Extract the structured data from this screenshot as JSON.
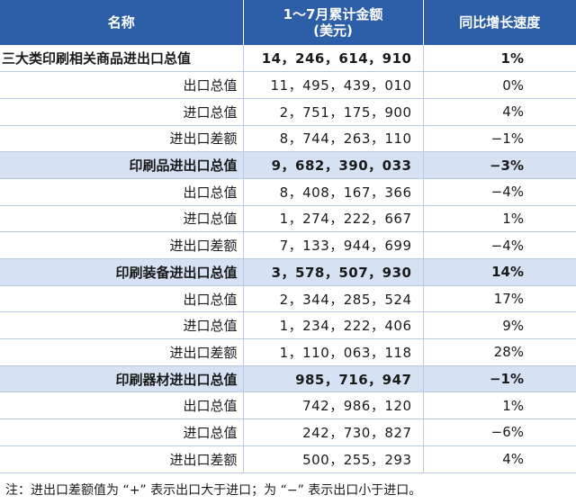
{
  "header": {
    "col_name": "名称",
    "col_amount_line1": "1～7月累计金额",
    "col_amount_line2": "(美元)",
    "col_growth": "同比增长速度"
  },
  "rows": [
    {
      "name": "三大类印刷相关商品进出口总值",
      "value": "14，246，614，910",
      "growth": "1%",
      "kind": "total"
    },
    {
      "name": "出口总值",
      "value": "11，495，439，010",
      "growth": "0%",
      "kind": "item"
    },
    {
      "name": "进口总值",
      "value": "2，751，175，900",
      "growth": "4%",
      "kind": "item"
    },
    {
      "name": "进出口差额",
      "value": "8，744，263，110",
      "growth": "−1%",
      "kind": "item"
    },
    {
      "name": "印刷品进出口总值",
      "value": "9，682，390，033",
      "growth": "−3%",
      "kind": "group"
    },
    {
      "name": "出口总值",
      "value": "8，408，167，366",
      "growth": "−4%",
      "kind": "item"
    },
    {
      "name": "进口总值",
      "value": "1，274，222，667",
      "growth": "1%",
      "kind": "item"
    },
    {
      "name": "进出口差额",
      "value": "7，133，944，699",
      "growth": "−4%",
      "kind": "item"
    },
    {
      "name": "印刷装备进出口总值",
      "value": "3，578，507，930",
      "growth": "14%",
      "kind": "group"
    },
    {
      "name": "出口总值",
      "value": "2，344，285，524",
      "growth": "17%",
      "kind": "item"
    },
    {
      "name": "进口总值",
      "value": "1，234，222，406",
      "growth": "9%",
      "kind": "item"
    },
    {
      "name": "进出口差额",
      "value": "1，110，063，118",
      "growth": "28%",
      "kind": "item"
    },
    {
      "name": "印刷器材进出口总值",
      "value": "985，716，947",
      "growth": "−1%",
      "kind": "group"
    },
    {
      "name": "出口总值",
      "value": "742，986，120",
      "growth": "1%",
      "kind": "item"
    },
    {
      "name": "进口总值",
      "value": "242，730，827",
      "growth": "−6%",
      "kind": "item"
    },
    {
      "name": "进出口差额",
      "value": "500，255，293",
      "growth": "4%",
      "kind": "item"
    }
  ],
  "footnote": "注：进出口差额值为 “+” 表示出口大于进口；为 “−” 表示出口小于进口。",
  "colors": {
    "header_bg": "#2d5fa8",
    "group_bg": "#d6e1f3",
    "grid": "#b9c9e4"
  }
}
